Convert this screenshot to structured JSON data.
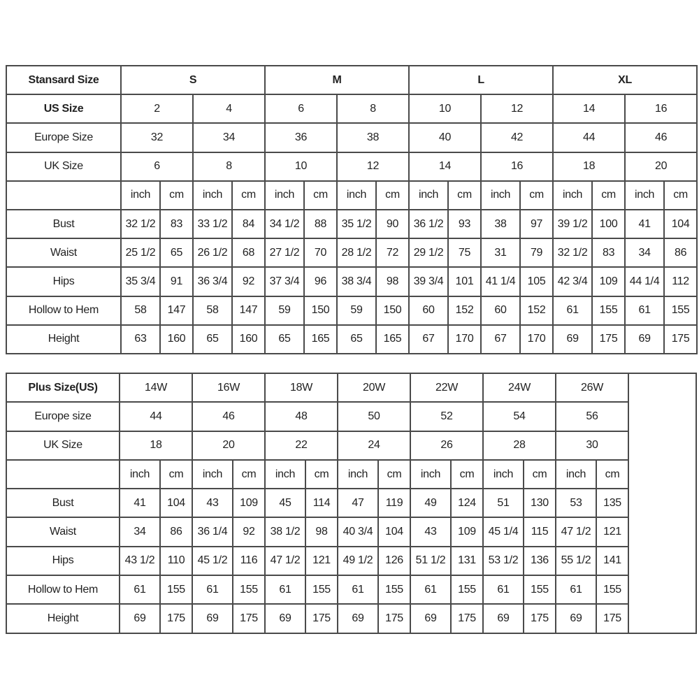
{
  "standard": {
    "header_label": "Stansard Size",
    "sizes": [
      "S",
      "M",
      "L",
      "XL"
    ],
    "size_rows": [
      {
        "label": "US Size",
        "bold": true,
        "values": [
          "2",
          "4",
          "6",
          "8",
          "10",
          "12",
          "14",
          "16"
        ]
      },
      {
        "label": "Europe Size",
        "bold": false,
        "values": [
          "32",
          "34",
          "36",
          "38",
          "40",
          "42",
          "44",
          "46"
        ]
      },
      {
        "label": "UK Size",
        "bold": false,
        "values": [
          "6",
          "8",
          "10",
          "12",
          "14",
          "16",
          "18",
          "20"
        ]
      }
    ],
    "unit_labels": [
      "inch",
      "cm"
    ],
    "measurements": [
      {
        "label": "Bust",
        "values": [
          "32 1/2",
          "83",
          "33 1/2",
          "84",
          "34 1/2",
          "88",
          "35 1/2",
          "90",
          "36 1/2",
          "93",
          "38",
          "97",
          "39 1/2",
          "100",
          "41",
          "104"
        ]
      },
      {
        "label": "Waist",
        "values": [
          "25 1/2",
          "65",
          "26 1/2",
          "68",
          "27 1/2",
          "70",
          "28 1/2",
          "72",
          "29 1/2",
          "75",
          "31",
          "79",
          "32 1/2",
          "83",
          "34",
          "86"
        ]
      },
      {
        "label": "Hips",
        "values": [
          "35 3/4",
          "91",
          "36 3/4",
          "92",
          "37 3/4",
          "96",
          "38 3/4",
          "98",
          "39 3/4",
          "101",
          "41 1/4",
          "105",
          "42 3/4",
          "109",
          "44 1/4",
          "112"
        ]
      },
      {
        "label": "Hollow to Hem",
        "values": [
          "58",
          "147",
          "58",
          "147",
          "59",
          "150",
          "59",
          "150",
          "60",
          "152",
          "60",
          "152",
          "61",
          "155",
          "61",
          "155"
        ]
      },
      {
        "label": "Height",
        "values": [
          "63",
          "160",
          "65",
          "160",
          "65",
          "165",
          "65",
          "165",
          "67",
          "170",
          "67",
          "170",
          "69",
          "175",
          "69",
          "175"
        ]
      }
    ]
  },
  "plus": {
    "header_label": "Plus Size(US)",
    "sizes": [
      "14W",
      "16W",
      "18W",
      "20W",
      "22W",
      "24W",
      "26W"
    ],
    "size_rows": [
      {
        "label": "Europe size",
        "values": [
          "44",
          "46",
          "48",
          "50",
          "52",
          "54",
          "56"
        ]
      },
      {
        "label": "UK Size",
        "values": [
          "18",
          "20",
          "22",
          "24",
          "26",
          "28",
          "30"
        ]
      }
    ],
    "unit_labels": [
      "inch",
      "cm"
    ],
    "measurements": [
      {
        "label": "Bust",
        "values": [
          "41",
          "104",
          "43",
          "109",
          "45",
          "114",
          "47",
          "119",
          "49",
          "124",
          "51",
          "130",
          "53",
          "135"
        ]
      },
      {
        "label": "Waist",
        "values": [
          "34",
          "86",
          "36 1/4",
          "92",
          "38 1/2",
          "98",
          "40 3/4",
          "104",
          "43",
          "109",
          "45 1/4",
          "115",
          "47 1/2",
          "121"
        ]
      },
      {
        "label": "Hips",
        "values": [
          "43 1/2",
          "110",
          "45 1/2",
          "116",
          "47 1/2",
          "121",
          "49 1/2",
          "126",
          "51 1/2",
          "131",
          "53 1/2",
          "136",
          "55 1/2",
          "141"
        ]
      },
      {
        "label": "Hollow to Hem",
        "values": [
          "61",
          "155",
          "61",
          "155",
          "61",
          "155",
          "61",
          "155",
          "61",
          "155",
          "61",
          "155",
          "61",
          "155"
        ]
      },
      {
        "label": "Height",
        "values": [
          "69",
          "175",
          "69",
          "175",
          "69",
          "175",
          "69",
          "175",
          "69",
          "175",
          "69",
          "175",
          "69",
          "175"
        ]
      }
    ]
  }
}
